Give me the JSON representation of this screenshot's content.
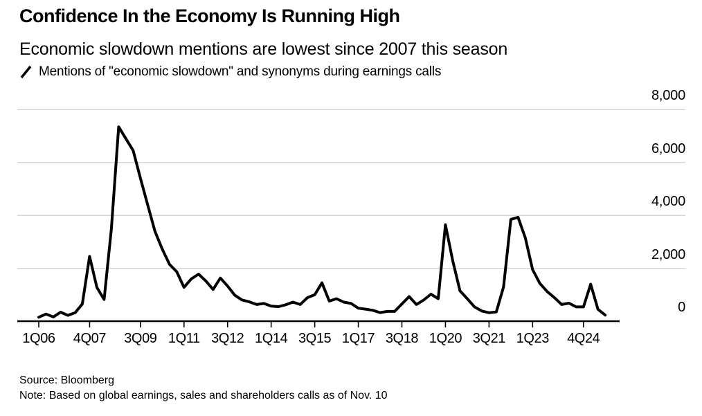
{
  "page": {
    "background": "#ffffff"
  },
  "header": {
    "title": "Confidence In the Economy Is Running High",
    "subtitle": "Economic slowdown mentions are lowest since 2007 this season"
  },
  "legend": {
    "series_label": "Mentions of \"economic slowdown\" and synonyms during earnings calls",
    "line_color": "#000000"
  },
  "footer": {
    "source": "Source: Bloomberg",
    "note": "Note: Based on global earnings, sales and shareholders calls as of Nov. 10"
  },
  "chart_data": {
    "type": "line",
    "title": "Mentions of \"economic slowdown\" and synonyms during earnings calls",
    "categories": [
      "1Q06",
      "2Q06",
      "3Q06",
      "4Q06",
      "1Q07",
      "2Q07",
      "3Q07",
      "4Q07",
      "1Q08",
      "2Q08",
      "3Q08",
      "4Q08",
      "1Q09",
      "2Q09",
      "3Q09",
      "4Q09",
      "1Q10",
      "2Q10",
      "3Q10",
      "4Q10",
      "1Q11",
      "2Q11",
      "3Q11",
      "4Q11",
      "1Q12",
      "2Q12",
      "3Q12",
      "4Q12",
      "1Q13",
      "2Q13",
      "3Q13",
      "4Q13",
      "1Q14",
      "2Q14",
      "3Q14",
      "4Q14",
      "1Q15",
      "2Q15",
      "3Q15",
      "4Q15",
      "1Q16",
      "2Q16",
      "3Q16",
      "4Q16",
      "1Q17",
      "2Q17",
      "3Q17",
      "4Q17",
      "1Q18",
      "2Q18",
      "3Q18",
      "4Q18",
      "1Q19",
      "2Q19",
      "3Q19",
      "4Q19",
      "1Q20",
      "2Q20",
      "3Q20",
      "4Q20",
      "1Q21",
      "2Q21",
      "3Q21",
      "4Q21",
      "1Q22",
      "2Q22",
      "3Q22",
      "4Q22",
      "1Q23",
      "2Q23",
      "3Q23",
      "4Q23",
      "1Q24",
      "2Q24",
      "3Q24",
      "4Q24",
      "1Q25",
      "2Q25",
      "3Q25"
    ],
    "values": [
      150,
      270,
      160,
      340,
      220,
      320,
      650,
      2450,
      1280,
      820,
      3500,
      7350,
      6900,
      6450,
      5400,
      4400,
      3400,
      2730,
      2150,
      1870,
      1280,
      1600,
      1780,
      1520,
      1200,
      1630,
      1330,
      980,
      800,
      730,
      630,
      670,
      570,
      550,
      620,
      720,
      630,
      890,
      1000,
      1450,
      760,
      850,
      720,
      670,
      490,
      455,
      410,
      325,
      370,
      370,
      650,
      930,
      630,
      800,
      1020,
      850,
      3650,
      2290,
      1150,
      850,
      540,
      385,
      320,
      350,
      1300,
      3850,
      3930,
      3150,
      1950,
      1430,
      1120,
      890,
      630,
      680,
      540,
      540,
      1400,
      450,
      230
    ],
    "x_tick_labels": [
      "1Q06",
      "4Q07",
      "3Q09",
      "1Q11",
      "3Q12",
      "1Q14",
      "3Q15",
      "1Q17",
      "3Q18",
      "1Q20",
      "3Q21",
      "1Q23",
      "4Q24"
    ],
    "x_tick_indices": [
      0,
      7,
      14,
      20,
      26,
      32,
      38,
      44,
      50,
      56,
      62,
      68,
      75
    ],
    "y_ticks": [
      0,
      2000,
      4000,
      6000,
      8000
    ],
    "y_tick_labels": [
      "0",
      "2,000",
      "4,000",
      "6,000",
      "8,000"
    ],
    "ylim": [
      0,
      8000
    ],
    "grid": "horizontal",
    "y_axis_side": "right",
    "legend_position": "top-left",
    "line_color": "#000000",
    "grid_color": "#d2d2d2",
    "axis_color": "#000000"
  }
}
